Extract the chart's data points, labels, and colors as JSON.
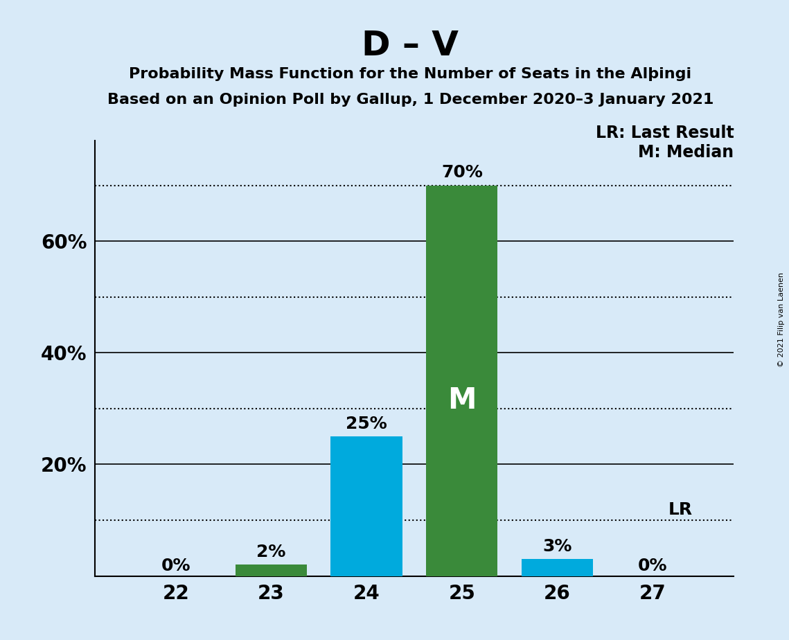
{
  "title": "D – V",
  "subtitle1": "Probability Mass Function for the Number of Seats in the Alþingi",
  "subtitle2": "Based on an Opinion Poll by Gallup, 1 December 2020–3 January 2021",
  "copyright": "© 2021 Filip van Laenen",
  "seats": [
    22,
    23,
    24,
    25,
    26,
    27
  ],
  "values": [
    0,
    2,
    25,
    70,
    3,
    0
  ],
  "bar_colors": [
    "#3a8a3a",
    "#3a8a3a",
    "#00aadd",
    "#3a8a3a",
    "#00aadd",
    "#3a8a3a"
  ],
  "labels": [
    "0%",
    "2%",
    "25%",
    "70%",
    "3%",
    "0%"
  ],
  "median_seat": 25,
  "lr_value": 10,
  "lr_label": "LR",
  "lr_line_label": "LR: Last Result",
  "median_label": "M: Median",
  "median_text": "M",
  "background_color": "#d8eaf8",
  "bar_width": 0.75,
  "ylim": [
    0,
    78
  ],
  "solid_yticks": [
    20,
    40,
    60
  ],
  "dotted_yticks": [
    10,
    30,
    50,
    70
  ],
  "ytick_labels_positions": [
    20,
    40,
    60
  ],
  "title_fontsize": 36,
  "subtitle_fontsize": 16,
  "tick_fontsize": 20,
  "label_fontsize": 18,
  "legend_fontsize": 17,
  "median_fontsize": 30
}
